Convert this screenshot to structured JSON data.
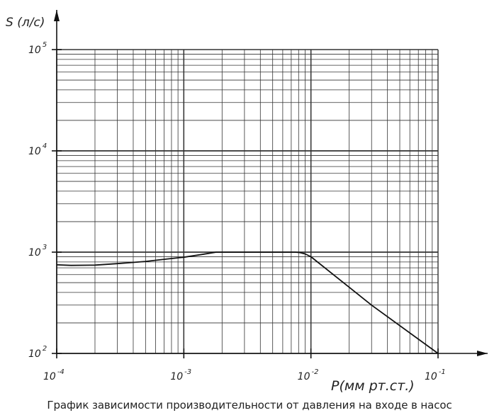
{
  "caption": "График зависимости производительности от давления на входе в насос",
  "chart_data": {
    "type": "line",
    "xlabel": "P(мм рт.ст.)",
    "ylabel": "S (л/с)",
    "x_scale": "log",
    "y_scale": "log",
    "xlim": [
      0.0001,
      0.1
    ],
    "ylim": [
      100,
      100000
    ],
    "grid": true,
    "x_ticks": [
      {
        "value": 0.0001,
        "base": "10",
        "exp": "-4"
      },
      {
        "value": 0.001,
        "base": "10",
        "exp": "-3"
      },
      {
        "value": 0.01,
        "base": "10",
        "exp": "-2"
      },
      {
        "value": 0.1,
        "base": "10",
        "exp": "-1"
      }
    ],
    "y_ticks": [
      {
        "value": 100,
        "base": "10",
        "exp": "2"
      },
      {
        "value": 1000,
        "base": "10",
        "exp": "3"
      },
      {
        "value": 10000,
        "base": "10",
        "exp": "4"
      },
      {
        "value": 100000,
        "base": "10",
        "exp": "5"
      }
    ],
    "series": [
      {
        "x": [
          0.0001,
          0.00013,
          0.0002,
          0.0003,
          0.0005,
          0.0007,
          0.001,
          0.0014,
          0.0018,
          0.003,
          0.005,
          0.0075,
          0.0082,
          0.009,
          0.01,
          0.03,
          0.1
        ],
        "y": [
          750,
          740,
          745,
          770,
          810,
          850,
          890,
          950,
          1000,
          1000,
          1000,
          1000,
          990,
          960,
          900,
          300,
          100
        ]
      }
    ]
  }
}
